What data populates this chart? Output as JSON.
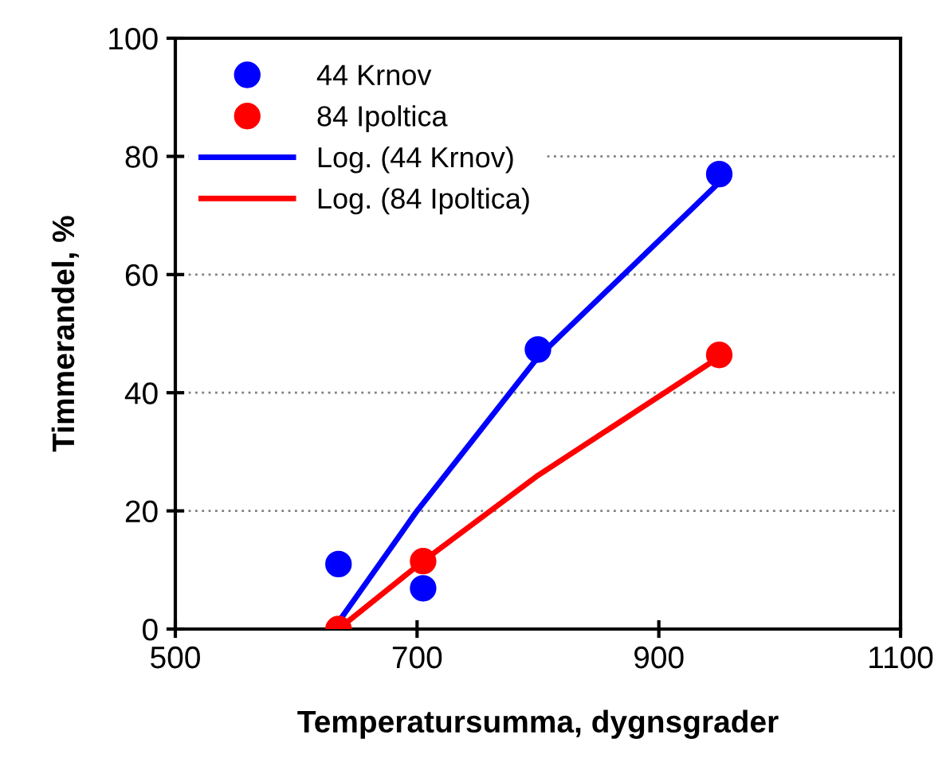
{
  "chart_data": {
    "type": "scatter",
    "xlabel": "Temperatursumma, dygnsgrader",
    "ylabel": "Timmerandel, %",
    "xlim": [
      500,
      1100
    ],
    "xticks": [
      500,
      700,
      900,
      1100
    ],
    "ylim": [
      0,
      100
    ],
    "yticks": [
      0,
      20,
      40,
      60,
      80,
      100
    ],
    "grid": "y",
    "legend": "top left",
    "series": [
      {
        "name": "44 Krnov",
        "marker": "circle",
        "color": "#0000ff",
        "x": [
          635,
          705,
          800,
          950
        ],
        "values": [
          11.0,
          6.9,
          47.3,
          77.0
        ]
      },
      {
        "name": "84 Ipoltica",
        "marker": "circle",
        "color": "#ff0000",
        "x": [
          635,
          705,
          950
        ],
        "values": [
          0,
          11.5,
          46.4
        ]
      },
      {
        "name": "Log. (44 Krnov)",
        "type": "line",
        "color": "#0000ff",
        "line_style": "solid",
        "x": [
          635,
          700,
          800,
          946
        ],
        "values": [
          1.2,
          20,
          46,
          74.8
        ]
      },
      {
        "name": "Log. (84 Ipoltica)",
        "type": "line",
        "color": "#ff0000",
        "line_style": "solid",
        "x": [
          635,
          705,
          800,
          946
        ],
        "values": [
          0,
          11.5,
          26,
          45.5
        ]
      }
    ]
  }
}
